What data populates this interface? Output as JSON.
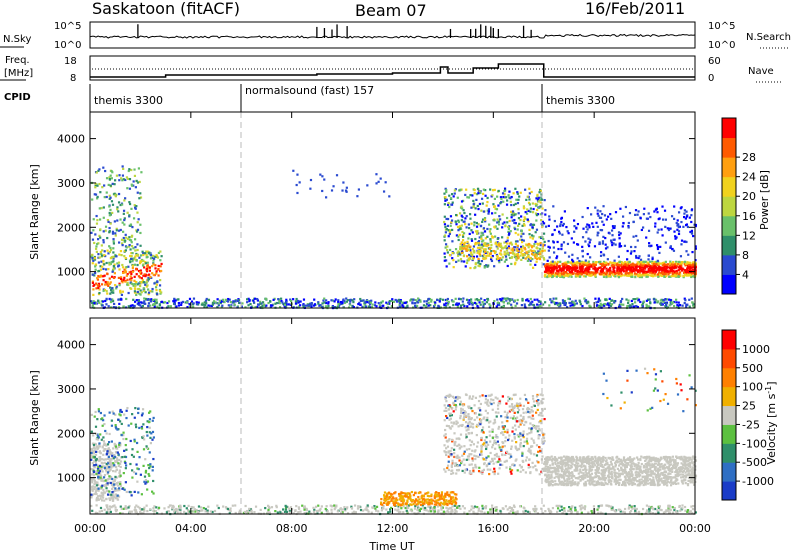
{
  "header": {
    "station": "Saskatoon (fitACF)",
    "beam": "Beam 07",
    "date": "16/Feb/2011"
  },
  "strip_labels": {
    "nsky": "N.Sky",
    "nsky_ticks": [
      "10^5",
      "10^0"
    ],
    "nsearch": "N.Search",
    "nsearch_ticks": [
      "10^5",
      "10^0"
    ],
    "freq": "Freq.",
    "freq_unit": "[MHz]",
    "freq_ticks": [
      "18",
      "8"
    ],
    "nave": "Nave",
    "nave_ticks": [
      "60",
      "0"
    ],
    "cpid": "CPID"
  },
  "cpid_modes": [
    {
      "label": "themis 3300",
      "start_hour": 0,
      "end_hour": 6
    },
    {
      "label": "normalsound (fast) 157",
      "start_hour": 6,
      "end_hour": 18
    },
    {
      "label": "themis 3300",
      "start_hour": 18,
      "end_hour": 24
    }
  ],
  "x_axis": {
    "label": "Time UT",
    "ticks": [
      "00:00",
      "04:00",
      "08:00",
      "12:00",
      "16:00",
      "20:00",
      "00:00"
    ],
    "range_hours": [
      0,
      24
    ]
  },
  "chart_data": [
    {
      "type": "heatmap",
      "quantity": "Power",
      "ylabel": "Slant Range [km]",
      "yticks": [
        "1000",
        "2000",
        "3000",
        "4000"
      ],
      "ylim_km": [
        180,
        4600
      ],
      "colorbar": {
        "label": "Power [dB]",
        "ticks": [
          "4",
          "8",
          "12",
          "16",
          "20",
          "24",
          "28"
        ],
        "colors": [
          "#0000ff",
          "#2a4ad0",
          "#2f8f6a",
          "#69c06a",
          "#bdd640",
          "#f1d21e",
          "#ff9f10",
          "#ff5a00",
          "#ff0000"
        ]
      }
    },
    {
      "type": "heatmap",
      "quantity": "Velocity",
      "ylabel": "Slant Range [km]",
      "yticks": [
        "1000",
        "2000",
        "3000",
        "4000"
      ],
      "ylim_km": [
        180,
        4600
      ],
      "colorbar": {
        "label": "Velocity [m s",
        "label_sup": "-1",
        "label_end": "]",
        "ticks": [
          "1000",
          "500",
          "100",
          "25",
          "-25",
          "-100",
          "-500",
          "-1000"
        ],
        "colors": [
          "#1a3cc8",
          "#2f6fc4",
          "#2f8f6a",
          "#5cc040",
          "#c8c8c0",
          "#f0b000",
          "#ff8000",
          "#ff4a00",
          "#ff0000"
        ]
      }
    }
  ]
}
